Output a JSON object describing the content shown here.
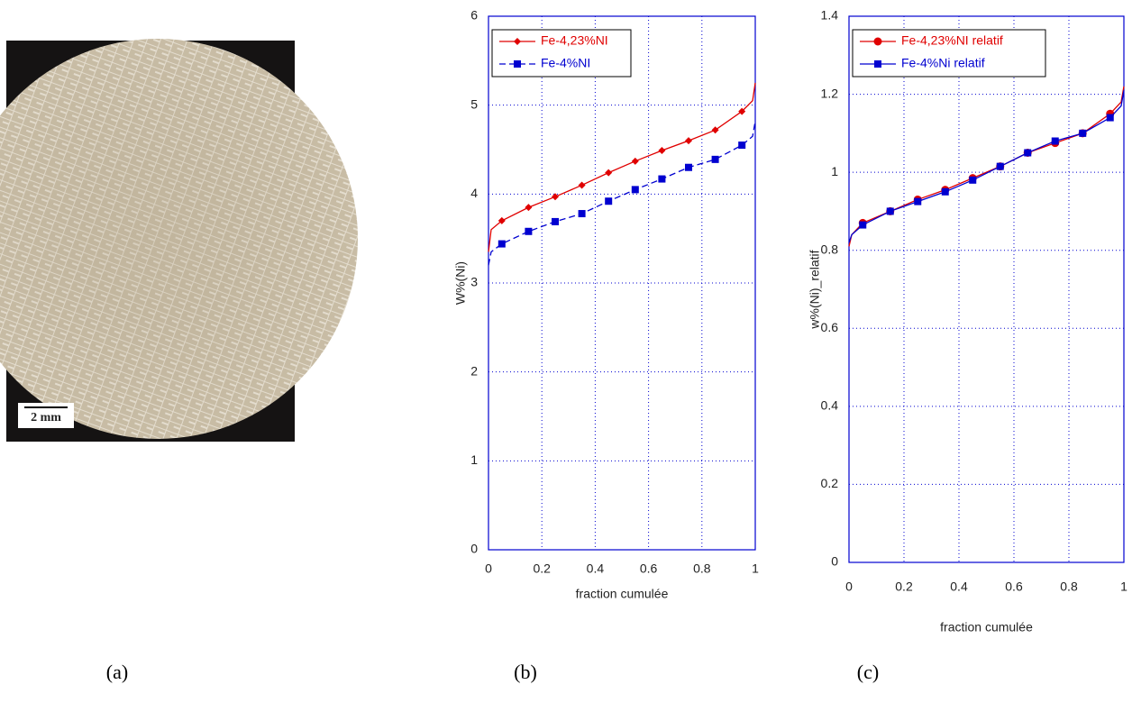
{
  "photo": {
    "scale_bar": "2 mm"
  },
  "panel_labels": [
    "(a)",
    "(b)",
    "(c)"
  ],
  "chart_data": [
    {
      "type": "line",
      "y_label": "W%(Ni)",
      "x_label": "fraction cumulée",
      "xlim": [
        0,
        1
      ],
      "xticks": [
        0,
        0.2,
        0.4,
        0.6,
        0.8,
        1
      ],
      "ylim": [
        0,
        6
      ],
      "yticks": [
        0,
        1,
        2,
        3,
        4,
        5,
        6
      ],
      "grid": true,
      "legend": "upper left",
      "series": [
        {
          "name": "Fe-4,23%NI",
          "color": "#e00000",
          "dash": false,
          "marker": "diamond",
          "x": [
            0,
            0.01,
            0.05,
            0.15,
            0.25,
            0.35,
            0.45,
            0.55,
            0.65,
            0.75,
            0.85,
            0.95,
            0.99,
            1
          ],
          "values": [
            3.35,
            3.6,
            3.7,
            3.85,
            3.97,
            4.1,
            4.24,
            4.37,
            4.49,
            4.6,
            4.72,
            4.93,
            5.05,
            5.25
          ],
          "markers": {
            "x": [
              0.05,
              0.15,
              0.25,
              0.35,
              0.45,
              0.55,
              0.65,
              0.75,
              0.85,
              0.95
            ],
            "values": [
              3.7,
              3.85,
              3.97,
              4.1,
              4.24,
              4.37,
              4.49,
              4.6,
              4.72,
              4.93
            ]
          }
        },
        {
          "name": "Fe-4%NI",
          "color": "#0000d0",
          "dash": true,
          "marker": "square",
          "x": [
            0,
            0.01,
            0.05,
            0.15,
            0.25,
            0.35,
            0.45,
            0.55,
            0.65,
            0.75,
            0.85,
            0.95,
            0.99,
            1
          ],
          "values": [
            3.2,
            3.35,
            3.44,
            3.58,
            3.69,
            3.78,
            3.92,
            4.05,
            4.17,
            4.3,
            4.39,
            4.55,
            4.65,
            4.82
          ],
          "markers": {
            "x": [
              0.05,
              0.15,
              0.25,
              0.35,
              0.45,
              0.55,
              0.65,
              0.75,
              0.85,
              0.95
            ],
            "values": [
              3.44,
              3.58,
              3.69,
              3.78,
              3.92,
              4.05,
              4.17,
              4.3,
              4.39,
              4.55
            ]
          }
        }
      ]
    },
    {
      "type": "line",
      "y_label": "w%(Ni)_relatif",
      "x_label": "fraction cumulée",
      "xlim": [
        0,
        1
      ],
      "xticks": [
        0,
        0.2,
        0.4,
        0.6,
        0.8,
        1
      ],
      "ylim": [
        0,
        1.4
      ],
      "yticks": [
        0,
        0.2,
        0.4,
        0.6,
        0.8,
        1,
        1.2,
        1.4
      ],
      "grid": true,
      "legend": "upper left",
      "series": [
        {
          "name": "Fe-4,23%NI relatif",
          "color": "#e00000",
          "dash": false,
          "marker": "circle",
          "x": [
            0,
            0.01,
            0.05,
            0.15,
            0.25,
            0.35,
            0.45,
            0.55,
            0.65,
            0.75,
            0.85,
            0.95,
            0.99,
            1
          ],
          "values": [
            0.81,
            0.84,
            0.87,
            0.9,
            0.93,
            0.955,
            0.985,
            1.015,
            1.05,
            1.075,
            1.1,
            1.15,
            1.18,
            1.22
          ],
          "markers": {
            "x": [
              0.05,
              0.15,
              0.25,
              0.35,
              0.45,
              0.55,
              0.65,
              0.75,
              0.85,
              0.95
            ],
            "values": [
              0.87,
              0.9,
              0.93,
              0.955,
              0.985,
              1.015,
              1.05,
              1.075,
              1.1,
              1.15
            ]
          }
        },
        {
          "name": "Fe-4%Ni  relatif",
          "color": "#0000d0",
          "dash": false,
          "marker": "square",
          "x": [
            0,
            0.01,
            0.05,
            0.15,
            0.25,
            0.35,
            0.45,
            0.55,
            0.65,
            0.75,
            0.85,
            0.95,
            0.99,
            1
          ],
          "values": [
            0.82,
            0.84,
            0.865,
            0.9,
            0.925,
            0.95,
            0.98,
            1.015,
            1.05,
            1.08,
            1.1,
            1.14,
            1.17,
            1.21
          ],
          "markers": {
            "x": [
              0.05,
              0.15,
              0.25,
              0.35,
              0.45,
              0.55,
              0.65,
              0.75,
              0.85,
              0.95
            ],
            "values": [
              0.865,
              0.9,
              0.925,
              0.95,
              0.98,
              1.015,
              1.05,
              1.08,
              1.1,
              1.14
            ]
          }
        }
      ]
    }
  ]
}
